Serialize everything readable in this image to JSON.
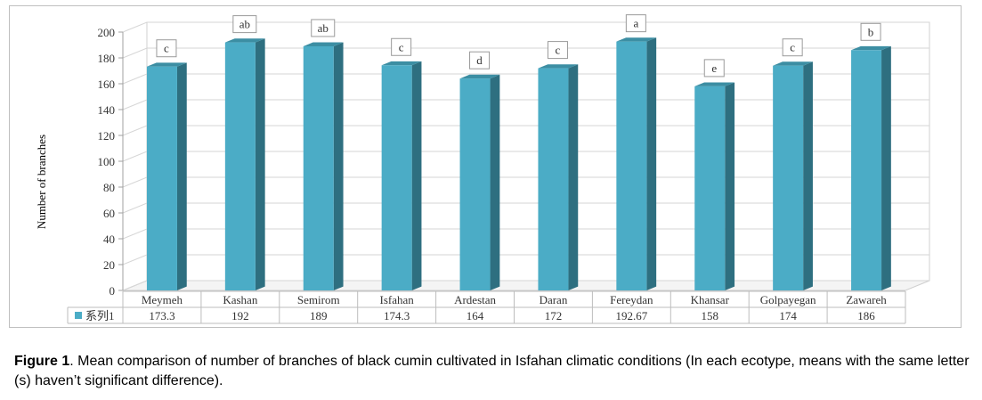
{
  "chart_data": {
    "type": "bar",
    "categories": [
      "Meymeh",
      "Kashan",
      "Semirom",
      "Isfahan",
      "Ardestan",
      "Daran",
      "Fereydan",
      "Khansar",
      "Golpayegan",
      "Zawareh"
    ],
    "series": [
      {
        "name": "系列1",
        "values": [
          173.3,
          192,
          189,
          174.3,
          164,
          172,
          192.67,
          158,
          174,
          186
        ],
        "value_labels": [
          "173.3",
          "192",
          "189",
          "174.3",
          "164",
          "172",
          "192.67",
          "158",
          "174",
          "186"
        ],
        "significance_letters": [
          "c",
          "ab",
          "ab",
          "c",
          "d",
          "c",
          "a",
          "e",
          "c",
          "b"
        ]
      }
    ],
    "ylabel": "Number of branches",
    "ylim": [
      0,
      200
    ],
    "yticks": [
      0,
      20,
      40,
      60,
      80,
      100,
      120,
      140,
      160,
      180,
      200
    ],
    "grid": true,
    "legend": "data-table-left",
    "style": "3d-column-with-data-table",
    "colors": {
      "bar_front": "#4bacc6",
      "bar_side": "#2e6f80",
      "bar_top": "#3c8ea3",
      "legend_swatch": "#4bacc6"
    }
  },
  "caption": {
    "label": "Figure 1",
    "text": ". Mean comparison of number of branches of black cumin cultivated in Isfahan climatic conditions (In each ecotype, means with the same letter (s) haven’t significant difference)."
  }
}
